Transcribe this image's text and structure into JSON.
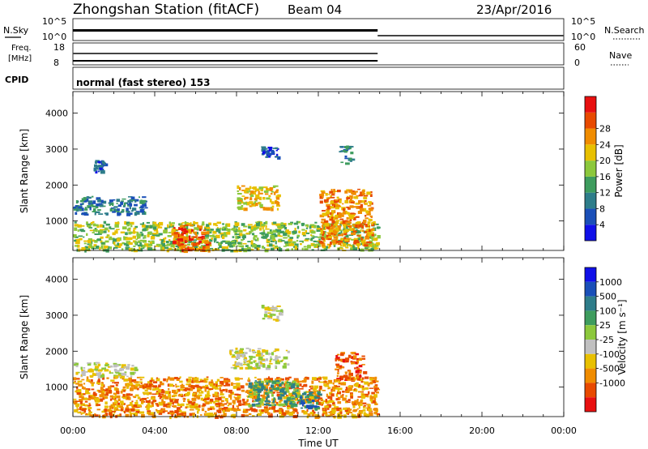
{
  "header": {
    "station": "Zhongshan Station (fitACF)",
    "beam": "Beam 04",
    "date": "23/Apr/2016"
  },
  "noise_panel": {
    "left_label": "N.Sky",
    "right_label": "N.Search",
    "left_ticks": [
      "10^5",
      "10^0"
    ],
    "right_ticks": [
      "10^5",
      "10^0"
    ]
  },
  "freq_panel": {
    "left_label_line1": "Freq.",
    "left_label_line2": "[MHz]",
    "right_label": "Nave",
    "left_ticks": [
      "18",
      "8"
    ],
    "right_ticks": [
      "60",
      "0"
    ]
  },
  "cpid_panel": {
    "label": "CPID",
    "text": "normal (fast stereo) 153"
  },
  "x_axis": {
    "ticks": [
      "00:00",
      "04:00",
      "08:00",
      "12:00",
      "16:00",
      "20:00",
      "00:00"
    ],
    "hours": [
      0,
      4,
      8,
      12,
      16,
      20,
      24
    ],
    "label": "Time UT",
    "range_hours": [
      0,
      24
    ]
  },
  "power_panel": {
    "ylabel": "Slant Range [km]",
    "yticks": [
      "1000",
      "2000",
      "3000",
      "4000"
    ],
    "ylim": [
      180,
      4600
    ],
    "colorbar_label": "Power [dB]",
    "colorbar_ticks": [
      "4",
      "8",
      "12",
      "16",
      "20",
      "24",
      "28"
    ],
    "colors": [
      "#1010e8",
      "#1a4fb8",
      "#2e7d8a",
      "#3e9c5e",
      "#8cc83c",
      "#e8c000",
      "#f08c00",
      "#e84a00",
      "#e81010"
    ]
  },
  "velocity_panel": {
    "ylabel": "Slant Range [km]",
    "yticks": [
      "1000",
      "2000",
      "3000",
      "4000"
    ],
    "ylim": [
      180,
      4600
    ],
    "colorbar_label": "Velocity [m s⁻¹]",
    "colorbar_ticks": [
      "1000",
      "500",
      "100",
      "25",
      "-25",
      "-100",
      "-500",
      "-1000"
    ],
    "colors": [
      "#1010e8",
      "#1a4fb8",
      "#2e7d8a",
      "#3e9c5e",
      "#8cc83c",
      "#c0c0c0",
      "#e8c000",
      "#f08c00",
      "#e84a00",
      "#e81010"
    ]
  },
  "chart_data": {
    "type": "heatmap",
    "title": "Zhongshan Station (fitACF)",
    "xlabel": "Time UT",
    "ylabel": "Slant Range [km]",
    "xlim": [
      0,
      24
    ],
    "ylim": [
      180,
      4600
    ],
    "data_end_hour": 14.9,
    "power_blobs": [
      {
        "t0": 0.0,
        "t1": 14.9,
        "r0": 200,
        "r1": 1000,
        "level": 4
      },
      {
        "t0": 0.0,
        "t1": 3.5,
        "r0": 1200,
        "r1": 1700,
        "level": 2
      },
      {
        "t0": 4.8,
        "t1": 6.6,
        "r0": 200,
        "r1": 900,
        "level": 7
      },
      {
        "t0": 8.0,
        "t1": 10.0,
        "r0": 1350,
        "r1": 2000,
        "level": 5
      },
      {
        "t0": 12.0,
        "t1": 14.6,
        "r0": 350,
        "r1": 1900,
        "level": 6
      },
      {
        "t0": 1.0,
        "t1": 1.5,
        "r0": 2400,
        "r1": 2700,
        "level": 1
      },
      {
        "t0": 9.2,
        "t1": 10.0,
        "r0": 2800,
        "r1": 3100,
        "level": 1
      },
      {
        "t0": 13.0,
        "t1": 13.6,
        "r0": 2600,
        "r1": 3100,
        "level": 2
      }
    ],
    "velocity_blobs": [
      {
        "t0": 0.0,
        "t1": 14.9,
        "r0": 200,
        "r1": 1300,
        "level": 7
      },
      {
        "t0": 0.0,
        "t1": 3.0,
        "r0": 1300,
        "r1": 1700,
        "level": 5
      },
      {
        "t0": 7.6,
        "t1": 10.5,
        "r0": 1550,
        "r1": 2100,
        "level": 5
      },
      {
        "t0": 8.5,
        "t1": 11.0,
        "r0": 500,
        "r1": 1200,
        "level": 3
      },
      {
        "t0": 12.8,
        "t1": 14.2,
        "r0": 1200,
        "r1": 2000,
        "level": 8
      },
      {
        "t0": 11.0,
        "t1": 12.0,
        "r0": 400,
        "r1": 900,
        "level": 2
      },
      {
        "t0": 9.2,
        "t1": 10.2,
        "r0": 2850,
        "r1": 3300,
        "level": 5
      }
    ],
    "noise_sky_level": 0.75,
    "noise_search_level": 0.3,
    "freq_level": 0.8,
    "nave_level": 0.65
  }
}
